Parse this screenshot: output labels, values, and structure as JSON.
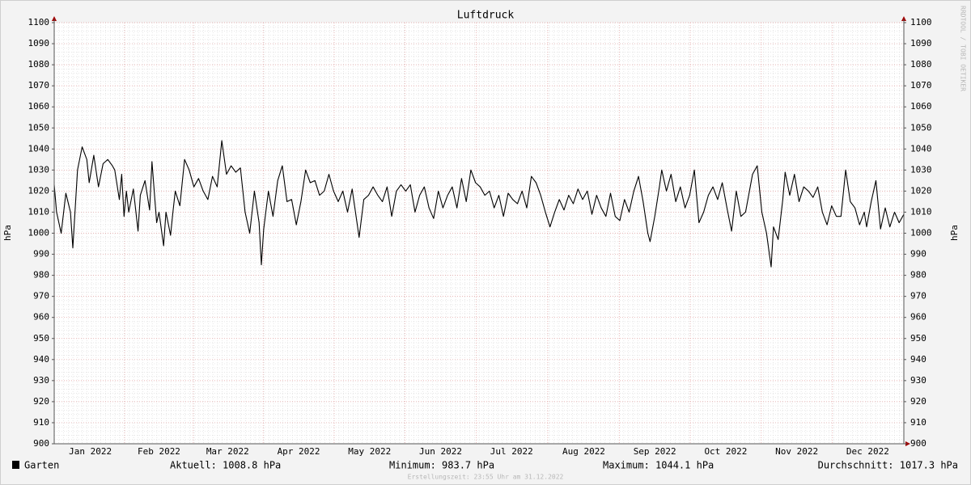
{
  "chart_data": {
    "type": "line",
    "title": "Luftdruck",
    "ylabel": "hPa",
    "watermark": "RRDTOOL / TOBI OETIKER",
    "footer": "Erstellungszeit: 23:55 Uhr am 31.12.2022",
    "legend_stats": [
      "Aktuell: 1008.8 hPa",
      "Minimum: 983.7 hPa",
      "Maximum: 1044.1 hPa",
      "Durchschnitt: 1017.3 hPa"
    ],
    "xlim": [
      0,
      365
    ],
    "xticks": [
      {
        "value": 15.5,
        "label": "Jan 2022"
      },
      {
        "value": 45,
        "label": "Feb 2022"
      },
      {
        "value": 74.5,
        "label": "Mar 2022"
      },
      {
        "value": 105,
        "label": "Apr 2022"
      },
      {
        "value": 135.5,
        "label": "May 2022"
      },
      {
        "value": 166,
        "label": "Jun 2022"
      },
      {
        "value": 196.5,
        "label": "Jul 2022"
      },
      {
        "value": 227.5,
        "label": "Aug 2022"
      },
      {
        "value": 258,
        "label": "Sep 2022"
      },
      {
        "value": 288.5,
        "label": "Oct 2022"
      },
      {
        "value": 319,
        "label": "Nov 2022"
      },
      {
        "value": 349.5,
        "label": "Dec 2022"
      }
    ],
    "ylim": [
      900,
      1100
    ],
    "yticks": [
      900,
      910,
      920,
      930,
      940,
      950,
      960,
      970,
      980,
      990,
      1000,
      1010,
      1020,
      1030,
      1040,
      1050,
      1060,
      1070,
      1080,
      1090,
      1100
    ],
    "grid": true,
    "x": [
      0,
      1,
      3,
      5,
      7,
      8,
      10,
      12,
      14,
      15,
      17,
      19,
      21,
      23,
      25,
      26,
      28,
      29,
      30,
      31,
      32,
      34,
      36,
      37,
      39,
      41,
      42,
      44,
      45,
      47,
      48,
      50,
      51,
      52,
      54,
      56,
      58,
      60,
      62,
      64,
      66,
      68,
      70,
      72,
      74,
      76,
      78,
      80,
      82,
      84,
      86,
      88,
      89,
      90,
      92,
      94,
      96,
      98,
      100,
      102,
      104,
      106,
      108,
      110,
      112,
      114,
      116,
      118,
      120,
      122,
      124,
      126,
      128,
      131,
      133,
      135,
      137,
      139,
      141,
      143,
      145,
      147,
      149,
      151,
      153,
      155,
      157,
      159,
      161,
      163,
      165,
      167,
      169,
      171,
      173,
      175,
      177,
      179,
      181,
      183,
      185,
      187,
      189,
      191,
      193,
      195,
      197,
      199,
      201,
      203,
      205,
      207,
      209,
      211,
      213,
      215,
      217,
      219,
      221,
      223,
      225,
      227,
      229,
      231,
      233,
      235,
      237,
      239,
      241,
      243,
      245,
      247,
      249,
      251,
      253,
      255,
      256,
      258,
      260,
      261,
      263,
      265,
      267,
      269,
      271,
      273,
      275,
      277,
      279,
      281,
      283,
      285,
      287,
      289,
      291,
      293,
      295,
      297,
      300,
      302,
      304,
      306,
      308,
      309,
      311,
      313,
      314,
      316,
      318,
      320,
      322,
      324,
      326,
      328,
      330,
      332,
      334,
      336,
      338,
      340,
      342,
      344,
      346,
      348,
      349,
      351,
      353,
      355,
      357,
      359,
      361,
      363,
      365
    ],
    "series": [
      {
        "name": "Garten",
        "color": "#000000",
        "values": [
          1023,
          1010,
          1000,
          1019,
          1010,
          993,
          1030,
          1041,
          1035,
          1024,
          1037,
          1022,
          1033,
          1035,
          1032,
          1030,
          1016,
          1028,
          1008,
          1020,
          1010,
          1021,
          1001,
          1018,
          1025,
          1011,
          1034,
          1005,
          1010,
          994,
          1010,
          999,
          1010,
          1020,
          1013,
          1035,
          1030,
          1022,
          1026,
          1020,
          1016,
          1027,
          1022,
          1044,
          1028,
          1032,
          1029,
          1031,
          1010,
          1000,
          1020,
          1005,
          985,
          1002,
          1020,
          1008,
          1025,
          1032,
          1015,
          1016,
          1004,
          1015,
          1030,
          1024,
          1025,
          1018,
          1020,
          1028,
          1020,
          1015,
          1020,
          1010,
          1021,
          998,
          1016,
          1018,
          1022,
          1018,
          1015,
          1022,
          1008,
          1020,
          1023,
          1020,
          1023,
          1010,
          1018,
          1022,
          1012,
          1007,
          1020,
          1012,
          1018,
          1022,
          1012,
          1026,
          1015,
          1030,
          1024,
          1022,
          1018,
          1020,
          1012,
          1018,
          1008,
          1019,
          1016,
          1014,
          1020,
          1012,
          1027,
          1024,
          1018,
          1010,
          1003,
          1010,
          1016,
          1011,
          1018,
          1014,
          1021,
          1016,
          1020,
          1009,
          1018,
          1012,
          1008,
          1019,
          1008,
          1006,
          1016,
          1010,
          1020,
          1027,
          1015,
          1000,
          996,
          1008,
          1022,
          1030,
          1020,
          1028,
          1015,
          1022,
          1012,
          1018,
          1030,
          1005,
          1010,
          1018,
          1022,
          1016,
          1024,
          1012,
          1001,
          1020,
          1008,
          1010,
          1028,
          1032,
          1010,
          1000,
          984,
          1003,
          997,
          1016,
          1029,
          1018,
          1028,
          1015,
          1022,
          1020,
          1017,
          1022,
          1010,
          1004,
          1013,
          1008,
          1008,
          1030,
          1015,
          1012,
          1004,
          1010,
          1003,
          1015,
          1025,
          1002,
          1012,
          1003,
          1010,
          1005,
          1009
        ]
      }
    ]
  }
}
